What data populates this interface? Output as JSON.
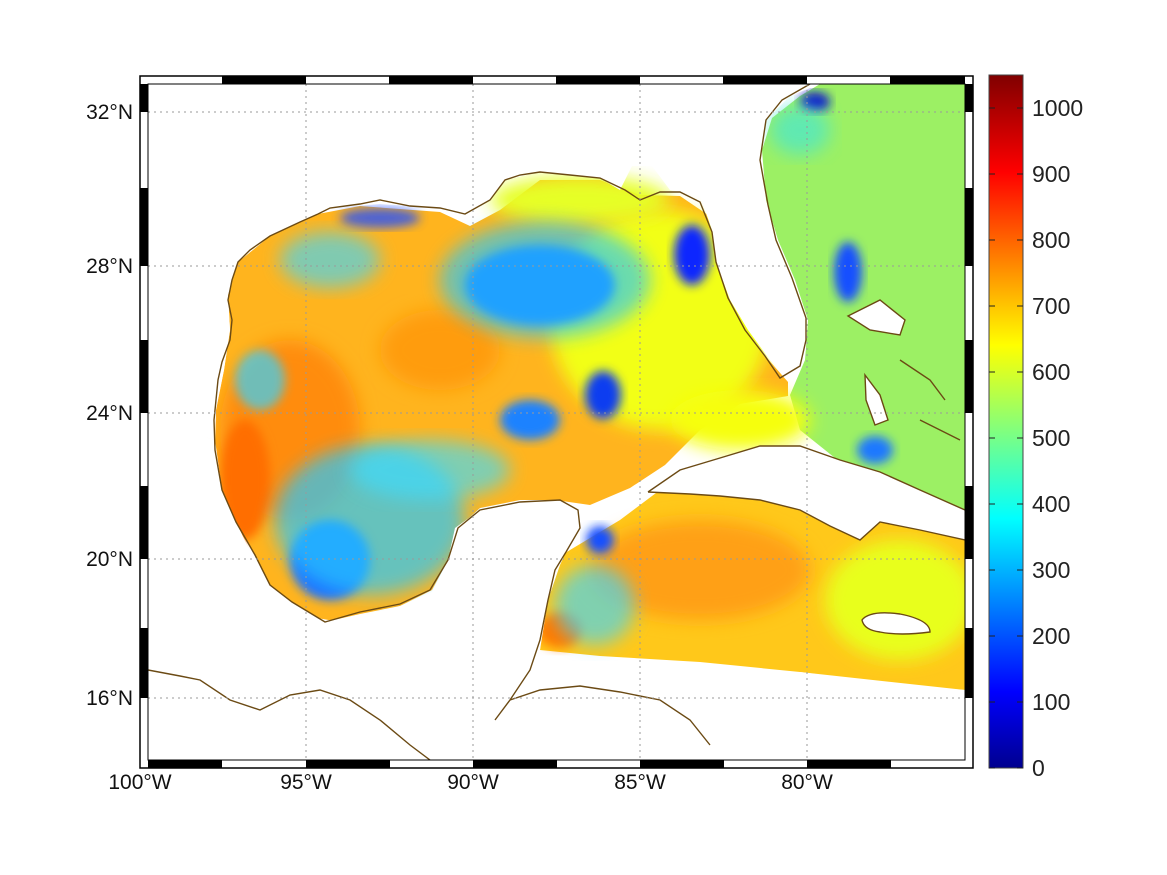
{
  "map": {
    "type": "heatmap",
    "region": "Gulf of Mexico and Caribbean",
    "lat_ticks": [
      "32°N",
      "28°N",
      "24°N",
      "20°N",
      "16°N"
    ],
    "lon_ticks": [
      "100°W",
      "95°W",
      "90°W",
      "85°W",
      "80°W"
    ],
    "grid": true,
    "frame": "black-and-white dashed",
    "coastline_color": "#6b4a14",
    "land_color": "#ffffff",
    "colormap": "jet"
  },
  "chart_data": {
    "type": "heatmap",
    "colorbar": {
      "min": 0,
      "max": 1050,
      "ticks": [
        "0",
        "100",
        "200",
        "300",
        "400",
        "500",
        "600",
        "700",
        "800",
        "900",
        "1000"
      ]
    },
    "xlim": [
      -100,
      -75
    ],
    "ylim": [
      14.4,
      33
    ],
    "features": [
      {
        "label": "western Gulf",
        "approx_value": 760
      },
      {
        "label": "northeastern Gulf low",
        "approx_value": 220
      },
      {
        "label": "West Florida shelf low",
        "approx_value": 180
      },
      {
        "label": "Bay of Campeche low",
        "approx_value": 300
      },
      {
        "label": "Caribbean south of Cuba",
        "approx_value": 720
      },
      {
        "label": "Atlantic east of Florida",
        "approx_value": 560
      }
    ]
  }
}
